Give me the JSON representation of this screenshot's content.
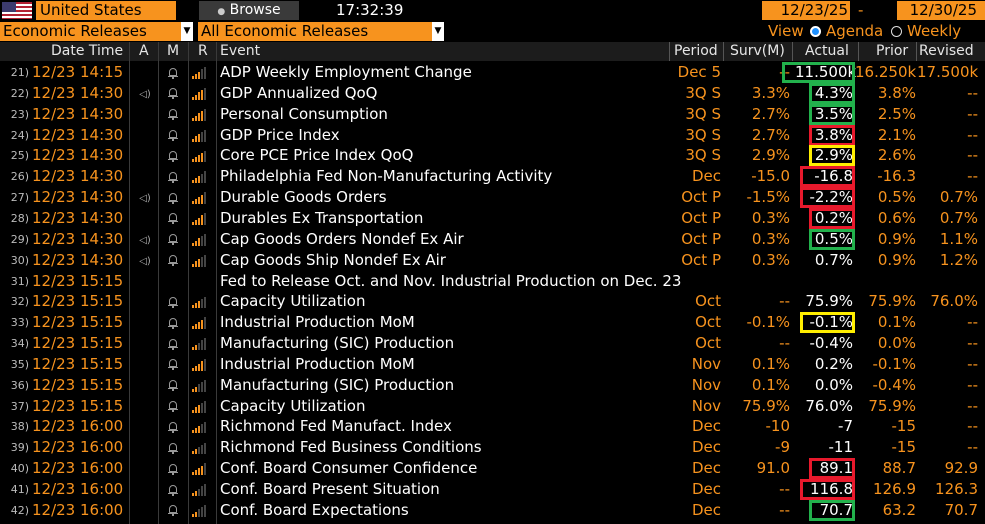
{
  "toolbar": {
    "country": "United States",
    "browse_label": "Browse",
    "browse_icon": "lock-icon",
    "time": "17:32:39",
    "start_date": "12/23/25",
    "end_date": "12/30/25",
    "date_separator": "-",
    "filter1": "Economic Releases",
    "filter2": "All Economic Releases",
    "view_label": "View",
    "view_agenda": "Agenda",
    "view_weekly": "Weekly",
    "view_selected": "Agenda"
  },
  "columns": {
    "datetime": "Date Time",
    "a": "A",
    "m": "M",
    "r": "R",
    "event": "Event",
    "period": "Period",
    "survey": "Surv(M)",
    "actual": "Actual",
    "prior": "Prior",
    "revised": "Revised"
  },
  "rows": [
    {
      "num": "21)",
      "dt": "12/23 14:15",
      "alert": "",
      "bell": true,
      "rel": 3,
      "event": "ADP Weekly Employment Change",
      "period": "Dec 5",
      "survey": "--",
      "actual": "11.500k",
      "prior": "16.250k",
      "revised": "17.500k",
      "box": "green"
    },
    {
      "num": "22)",
      "dt": "12/23 14:30",
      "alert": "speaker",
      "bell": true,
      "rel": 4,
      "event": "GDP Annualized QoQ",
      "period": "3Q S",
      "survey": "3.3%",
      "actual": "4.3%",
      "prior": "3.8%",
      "revised": "--",
      "box": "green"
    },
    {
      "num": "23)",
      "dt": "12/23 14:30",
      "alert": "",
      "bell": true,
      "rel": 4,
      "event": "Personal Consumption",
      "period": "3Q S",
      "survey": "2.7%",
      "actual": "3.5%",
      "prior": "2.5%",
      "revised": "--",
      "box": "green"
    },
    {
      "num": "24)",
      "dt": "12/23 14:30",
      "alert": "",
      "bell": true,
      "rel": 3,
      "event": "GDP Price Index",
      "period": "3Q S",
      "survey": "2.7%",
      "actual": "3.8%",
      "prior": "2.1%",
      "revised": "--",
      "box": "red"
    },
    {
      "num": "25)",
      "dt": "12/23 14:30",
      "alert": "",
      "bell": true,
      "rel": 4,
      "event": "Core PCE Price Index QoQ",
      "period": "3Q S",
      "survey": "2.9%",
      "actual": "2.9%",
      "prior": "2.6%",
      "revised": "--",
      "box": "yellow"
    },
    {
      "num": "26)",
      "dt": "12/23 14:30",
      "alert": "",
      "bell": true,
      "rel": 3,
      "event": "Philadelphia Fed Non-Manufacturing Activity",
      "period": "Dec",
      "survey": "-15.0",
      "actual": "-16.8",
      "prior": "-16.3",
      "revised": "--",
      "box": "red"
    },
    {
      "num": "27)",
      "dt": "12/23 14:30",
      "alert": "speaker",
      "bell": true,
      "rel": 4,
      "event": "Durable Goods Orders",
      "period": "Oct P",
      "survey": "-1.5%",
      "actual": "-2.2%",
      "prior": "0.5%",
      "revised": "0.7%",
      "box": "red"
    },
    {
      "num": "28)",
      "dt": "12/23 14:30",
      "alert": "",
      "bell": true,
      "rel": 4,
      "event": "Durables Ex Transportation",
      "period": "Oct P",
      "survey": "0.3%",
      "actual": "0.2%",
      "prior": "0.6%",
      "revised": "0.7%",
      "box": "red"
    },
    {
      "num": "29)",
      "dt": "12/23 14:30",
      "alert": "speaker",
      "bell": true,
      "rel": 3,
      "event": "Cap Goods Orders Nondef Ex Air",
      "period": "Oct P",
      "survey": "0.3%",
      "actual": "0.5%",
      "prior": "0.9%",
      "revised": "1.1%",
      "box": "green"
    },
    {
      "num": "30)",
      "dt": "12/23 14:30",
      "alert": "speaker",
      "bell": true,
      "rel": 3,
      "event": "Cap Goods Ship Nondef Ex Air",
      "period": "Oct P",
      "survey": "0.3%",
      "actual": "0.7%",
      "prior": "0.9%",
      "revised": "1.2%",
      "box": ""
    },
    {
      "num": "31)",
      "dt": "12/23 15:15",
      "alert": "",
      "bell": false,
      "rel": 0,
      "event": "Fed to Release Oct. and Nov. Industrial Production on Dec. 23",
      "period": "",
      "survey": "",
      "actual": "",
      "prior": "",
      "revised": "",
      "box": ""
    },
    {
      "num": "32)",
      "dt": "12/23 15:15",
      "alert": "",
      "bell": true,
      "rel": 3,
      "event": "Capacity Utilization",
      "period": "Oct",
      "survey": "--",
      "actual": "75.9%",
      "prior": "75.9%",
      "revised": "76.0%",
      "box": ""
    },
    {
      "num": "33)",
      "dt": "12/23 15:15",
      "alert": "",
      "bell": true,
      "rel": 4,
      "event": "Industrial Production MoM",
      "period": "Oct",
      "survey": "-0.1%",
      "actual": "-0.1%",
      "prior": "0.1%",
      "revised": "--",
      "box": "yellow"
    },
    {
      "num": "34)",
      "dt": "12/23 15:15",
      "alert": "",
      "bell": true,
      "rel": 2,
      "event": "Manufacturing (SIC) Production",
      "period": "Oct",
      "survey": "--",
      "actual": "-0.4%",
      "prior": "0.0%",
      "revised": "--",
      "box": ""
    },
    {
      "num": "35)",
      "dt": "12/23 15:15",
      "alert": "",
      "bell": true,
      "rel": 4,
      "event": "Industrial Production MoM",
      "period": "Nov",
      "survey": "0.1%",
      "actual": "0.2%",
      "prior": "-0.1%",
      "revised": "--",
      "box": ""
    },
    {
      "num": "36)",
      "dt": "12/23 15:15",
      "alert": "",
      "bell": true,
      "rel": 2,
      "event": "Manufacturing (SIC) Production",
      "period": "Nov",
      "survey": "0.1%",
      "actual": "0.0%",
      "prior": "-0.4%",
      "revised": "--",
      "box": ""
    },
    {
      "num": "37)",
      "dt": "12/23 15:15",
      "alert": "",
      "bell": true,
      "rel": 3,
      "event": "Capacity Utilization",
      "period": "Nov",
      "survey": "75.9%",
      "actual": "76.0%",
      "prior": "75.9%",
      "revised": "--",
      "box": ""
    },
    {
      "num": "38)",
      "dt": "12/23 16:00",
      "alert": "",
      "bell": true,
      "rel": 3,
      "event": "Richmond Fed Manufact. Index",
      "period": "Dec",
      "survey": "-10",
      "actual": "-7",
      "prior": "-15",
      "revised": "--",
      "box": ""
    },
    {
      "num": "39)",
      "dt": "12/23 16:00",
      "alert": "",
      "bell": true,
      "rel": 2,
      "event": "Richmond Fed Business Conditions",
      "period": "Dec",
      "survey": "-9",
      "actual": "-11",
      "prior": "-15",
      "revised": "--",
      "box": ""
    },
    {
      "num": "40)",
      "dt": "12/23 16:00",
      "alert": "",
      "bell": true,
      "rel": 4,
      "event": "Conf. Board Consumer Confidence",
      "period": "Dec",
      "survey": "91.0",
      "actual": "89.1",
      "prior": "88.7",
      "revised": "92.9",
      "box": "red"
    },
    {
      "num": "41)",
      "dt": "12/23 16:00",
      "alert": "",
      "bell": true,
      "rel": 2,
      "event": "Conf. Board Present Situation",
      "period": "Dec",
      "survey": "--",
      "actual": "116.8",
      "prior": "126.9",
      "revised": "126.3",
      "box": "red"
    },
    {
      "num": "42)",
      "dt": "12/23 16:00",
      "alert": "",
      "bell": true,
      "rel": 2,
      "event": "Conf. Board Expectations",
      "period": "Dec",
      "survey": "--",
      "actual": "70.7",
      "prior": "63.2",
      "revised": "70.7",
      "box": "green"
    }
  ],
  "colors": {
    "accent": "#f7931e",
    "green": "#22b14c",
    "red": "#e8192c",
    "yellow": "#ffee00"
  }
}
